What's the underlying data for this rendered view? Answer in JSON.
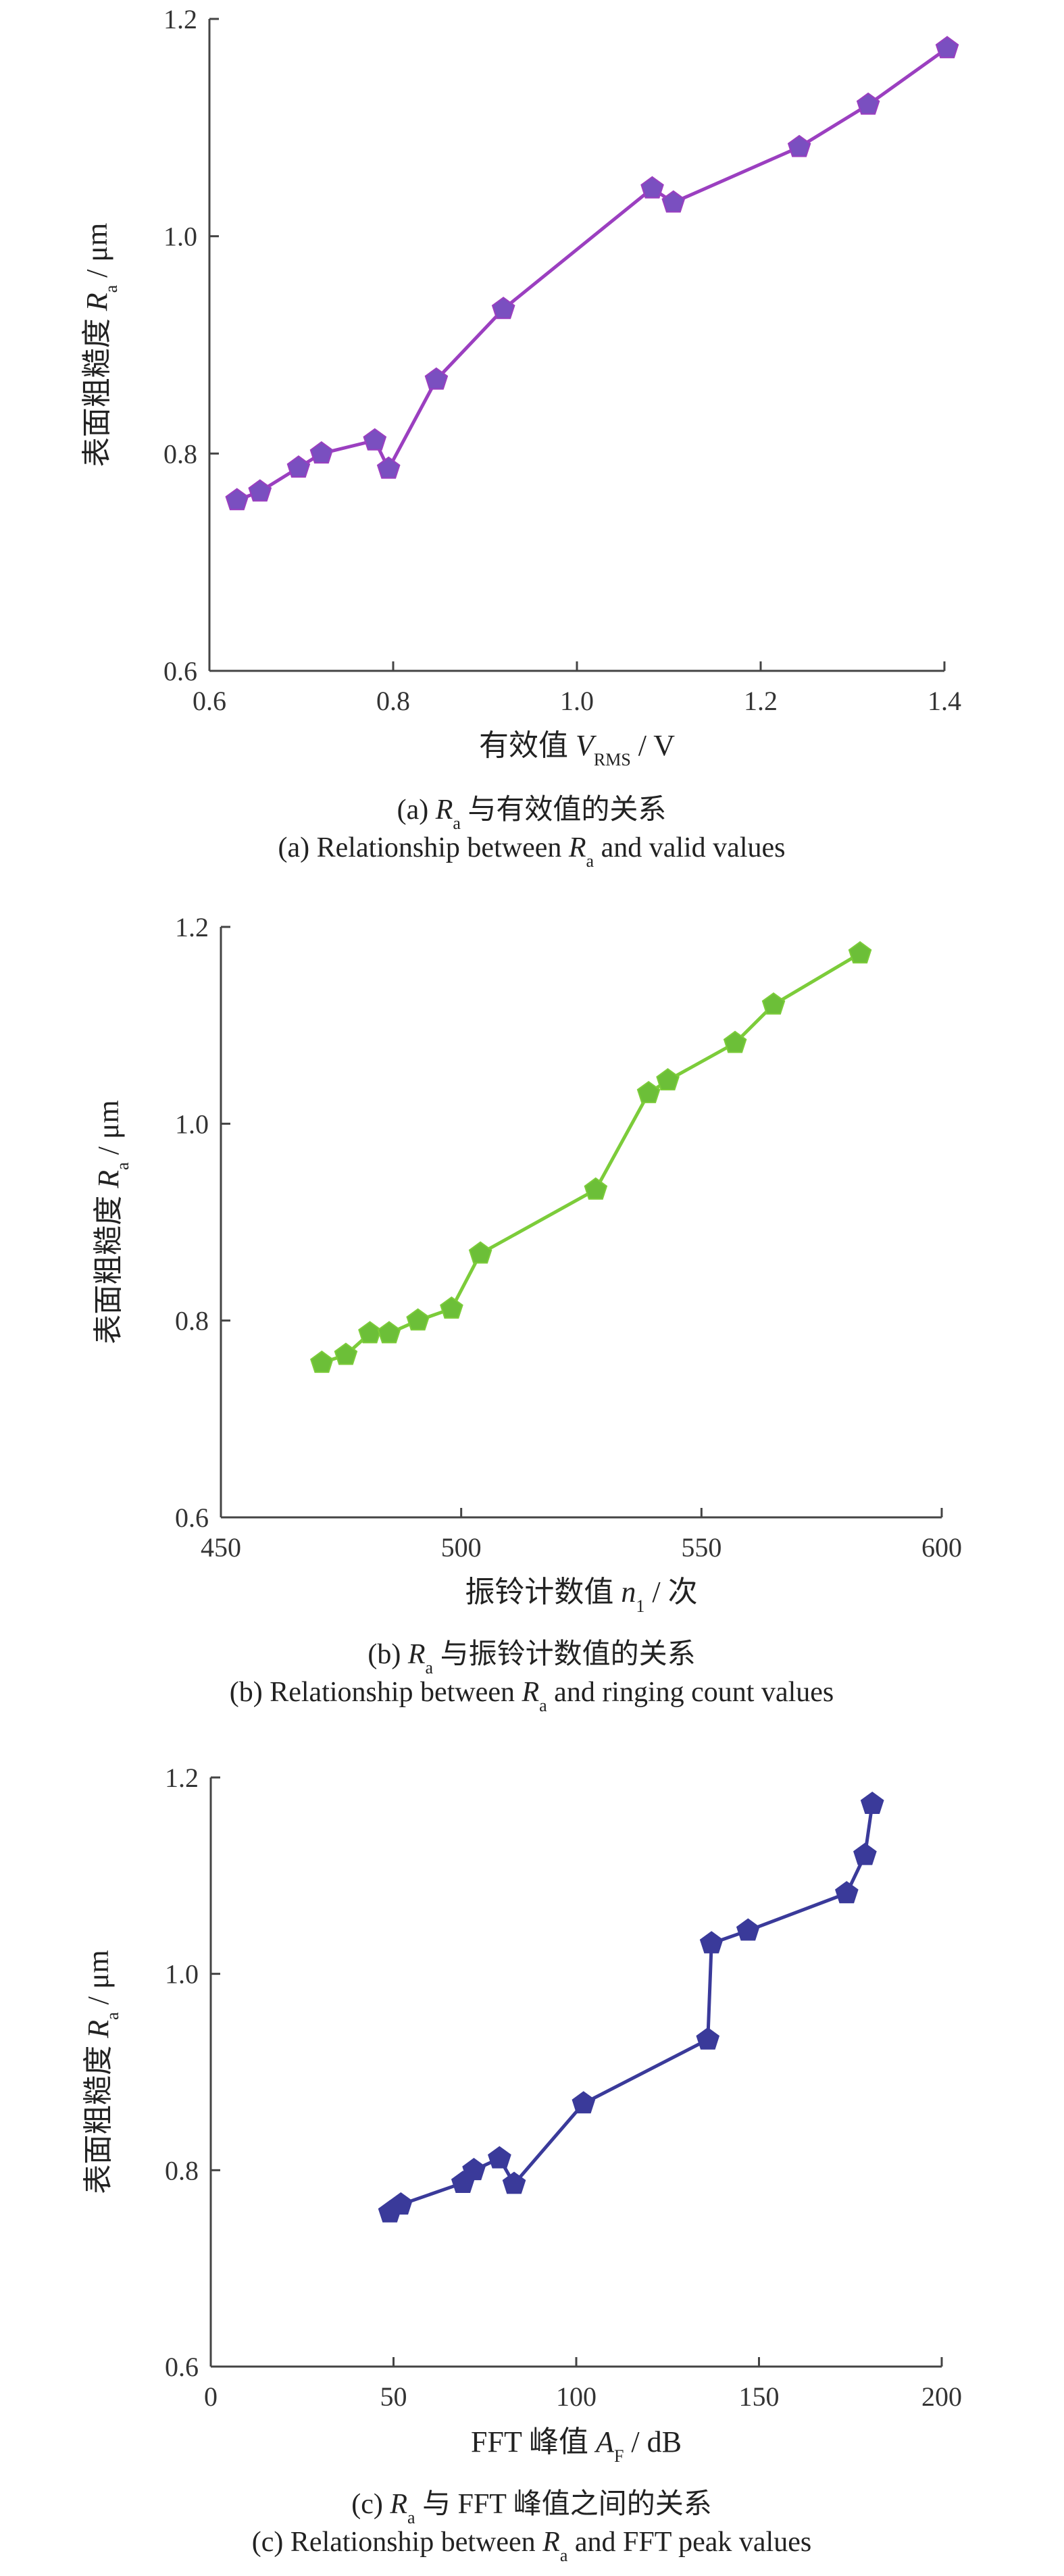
{
  "chart_data": [
    {
      "type": "line",
      "x_label": {
        "text": "有效值 ",
        "var": "V",
        "sub": "RMS",
        "unit": " / V"
      },
      "y_label": {
        "text": "表面粗糙度 ",
        "var": "R",
        "sub": "a",
        "unit": " / μm"
      },
      "caption_cn": {
        "prefix": "(a) ",
        "var": "R",
        "sub": "a",
        "text": " 与有效值的关系"
      },
      "caption_en": {
        "prefix": "(a) Relationship between ",
        "var": "R",
        "sub": "a",
        "text": " and valid values"
      },
      "xlim": [
        0.6,
        1.4
      ],
      "ylim": [
        0.6,
        1.2
      ],
      "xticks": [
        "0.6",
        "0.8",
        "1.0",
        "1.2",
        "1.4"
      ],
      "yticks": [
        "0.6",
        "0.8",
        "1.0",
        "1.2"
      ],
      "color": "#9b3fc0",
      "marker_color": "#7a4fc0",
      "points": [
        [
          0.63,
          0.757
        ],
        [
          0.655,
          0.765
        ],
        [
          0.697,
          0.787
        ],
        [
          0.722,
          0.8
        ],
        [
          0.78,
          0.812
        ],
        [
          0.795,
          0.786
        ],
        [
          0.847,
          0.868
        ],
        [
          0.92,
          0.933
        ],
        [
          1.082,
          1.044
        ],
        [
          1.105,
          1.031
        ],
        [
          1.242,
          1.082
        ],
        [
          1.317,
          1.121
        ],
        [
          1.403,
          1.173
        ]
      ]
    },
    {
      "type": "line",
      "x_label": {
        "text": "振铃计数值 ",
        "var": "n",
        "sub": "1",
        "unit": " / 次"
      },
      "y_label": {
        "text": "表面粗糙度 ",
        "var": "R",
        "sub": "a",
        "unit": " / μm"
      },
      "caption_cn": {
        "prefix": "(b) ",
        "var": "R",
        "sub": "a",
        "text": " 与振铃计数值的关系"
      },
      "caption_en": {
        "prefix": "(b) Relationship between ",
        "var": "R",
        "sub": "a",
        "text": " and ringing count values"
      },
      "xlim": [
        450,
        600
      ],
      "ylim": [
        0.6,
        1.2
      ],
      "xticks": [
        "450",
        "500",
        "550",
        "600"
      ],
      "yticks": [
        "0.6",
        "0.8",
        "1.0",
        "1.2"
      ],
      "color": "#7ccc3a",
      "marker_color": "#6cbf38",
      "points": [
        [
          471,
          0.757
        ],
        [
          476,
          0.765
        ],
        [
          481,
          0.787
        ],
        [
          485,
          0.787
        ],
        [
          491,
          0.8
        ],
        [
          498,
          0.812
        ],
        [
          504,
          0.868
        ],
        [
          528,
          0.933
        ],
        [
          539,
          1.031
        ],
        [
          543,
          1.044
        ],
        [
          557,
          1.082
        ],
        [
          565,
          1.121
        ],
        [
          583,
          1.173
        ]
      ]
    },
    {
      "type": "line",
      "x_label": {
        "text": "FFT 峰值 ",
        "var": "A",
        "sub": "F",
        "unit": " / dB"
      },
      "y_label": {
        "text": "表面粗糙度 ",
        "var": "R",
        "sub": "a",
        "unit": " / μm"
      },
      "caption_cn": {
        "prefix": "(c) ",
        "var": "R",
        "sub": "a",
        "text": " 与 FFT 峰值之间的关系"
      },
      "caption_en": {
        "prefix": "(c) Relationship between ",
        "var": "R",
        "sub": "a",
        "text": " and FFT peak values"
      },
      "xlim": [
        0,
        200
      ],
      "ylim": [
        0.6,
        1.2
      ],
      "xticks": [
        "0",
        "50",
        "100",
        "150",
        "200"
      ],
      "yticks": [
        "0.6",
        "0.8",
        "1.0",
        "1.2"
      ],
      "color": "#3a3a9a",
      "marker_color": "#3a3a9a",
      "points": [
        [
          49,
          0.757
        ],
        [
          52,
          0.765
        ],
        [
          69,
          0.787
        ],
        [
          72,
          0.8
        ],
        [
          79,
          0.812
        ],
        [
          83,
          0.786
        ],
        [
          102,
          0.868
        ],
        [
          136,
          0.933
        ],
        [
          137,
          1.031
        ],
        [
          147,
          1.044
        ],
        [
          174,
          1.082
        ],
        [
          179,
          1.121
        ],
        [
          181,
          1.173
        ]
      ]
    }
  ]
}
